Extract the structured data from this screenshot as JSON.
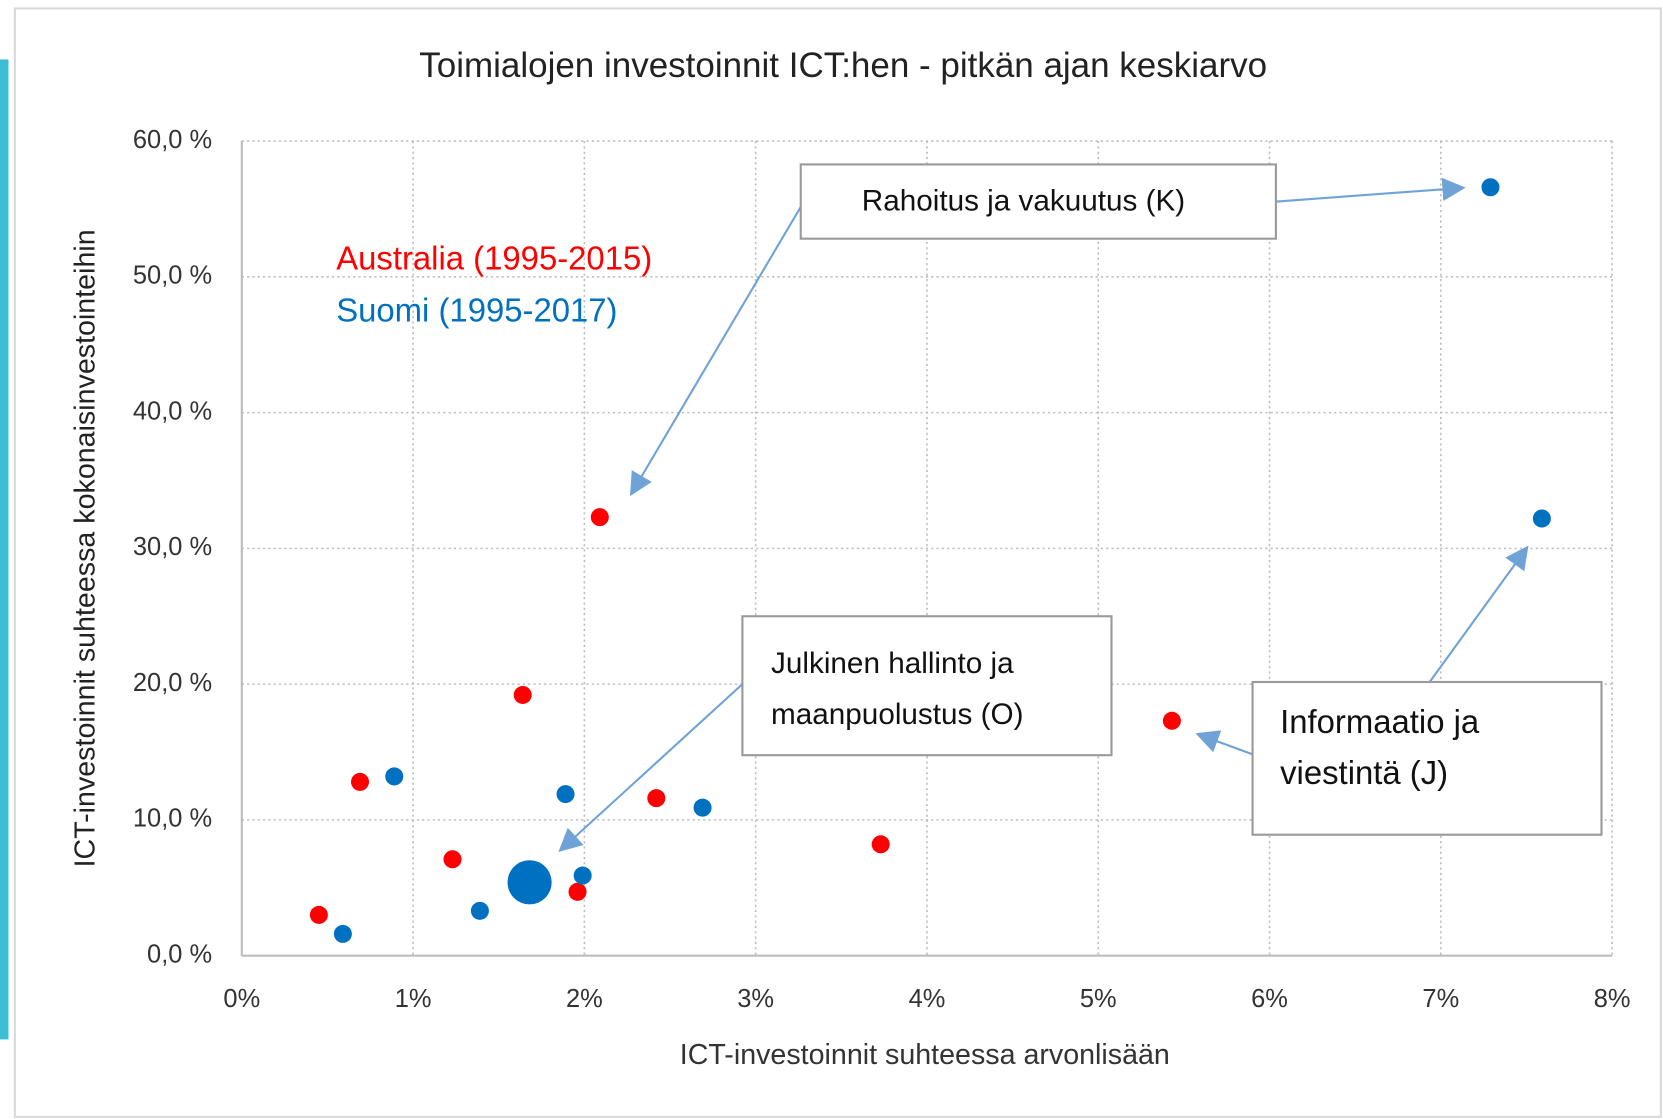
{
  "chart_data": {
    "type": "scatter",
    "title": "Toimialojen investoinnit ICT:hen - pitkän ajan keskiarvo",
    "x_label": "ICT-investoinnit suhteessa arvonlisään",
    "y_label": "ICT-investoinnit suhteessa kokonaisinvestointeihin",
    "xlim": [
      0,
      8
    ],
    "xticks": [
      {
        "value": 0,
        "label": "0%"
      },
      {
        "value": 1,
        "label": "1%"
      },
      {
        "value": 2,
        "label": "2%"
      },
      {
        "value": 3,
        "label": "3%"
      },
      {
        "value": 4,
        "label": "4%"
      },
      {
        "value": 5,
        "label": "5%"
      },
      {
        "value": 6,
        "label": "6%"
      },
      {
        "value": 7,
        "label": "7%"
      },
      {
        "value": 8,
        "label": "8%"
      }
    ],
    "ylim": [
      0,
      60
    ],
    "yticks": [
      {
        "value": 0,
        "label": "0,0 %"
      },
      {
        "value": 10,
        "label": "10,0 %"
      },
      {
        "value": 20,
        "label": "20,0 %"
      },
      {
        "value": 30,
        "label": "30,0 %"
      },
      {
        "value": 40,
        "label": "40,0 %"
      },
      {
        "value": 50,
        "label": "50,0 %"
      },
      {
        "value": 60,
        "label": "60,0 %"
      }
    ],
    "grid": true,
    "series": [
      {
        "name": "Australia (1995-2015)",
        "color": "#ff0000",
        "x": [
          0.45,
          0.69,
          1.23,
          1.64,
          1.96,
          2.09,
          2.42,
          3.73,
          5.43
        ],
        "values": [
          3.0,
          12.8,
          7.1,
          19.2,
          4.7,
          32.3,
          11.6,
          8.2,
          17.3
        ],
        "sizes": [
          1,
          1,
          1,
          1,
          1,
          1,
          1,
          1,
          1
        ]
      },
      {
        "name": "Suomi (1995-2017)",
        "color": "#0070c0",
        "x": [
          0.59,
          0.89,
          1.39,
          1.68,
          1.89,
          1.99,
          2.69,
          7.29,
          7.59
        ],
        "values": [
          1.6,
          13.2,
          3.3,
          5.4,
          11.9,
          5.9,
          10.9,
          56.6,
          32.2
        ],
        "sizes": [
          1,
          1,
          1,
          6,
          1,
          1,
          1,
          1,
          1
        ]
      }
    ],
    "annotations": [
      {
        "lines": [
          "Rahoitus ja vakuutus (K)"
        ]
      },
      {
        "lines": [
          "Julkinen hallinto ja",
          "maanpuolustus (O)"
        ]
      },
      {
        "lines": [
          "Informaatio ja",
          "viestintä (J)"
        ]
      }
    ]
  }
}
